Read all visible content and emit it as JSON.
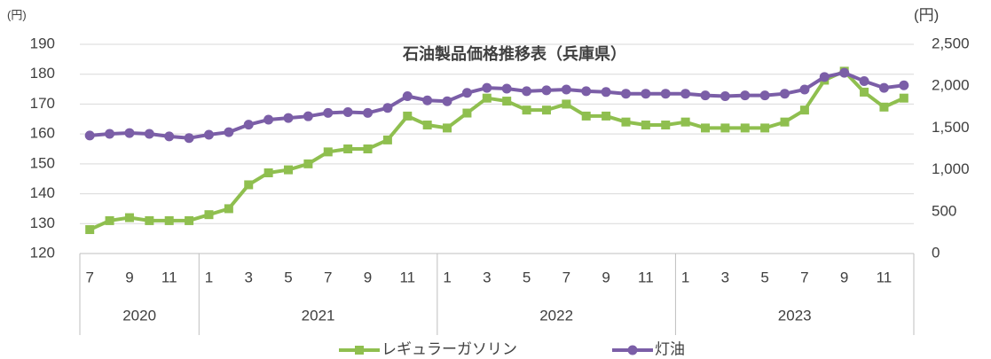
{
  "chart_data": {
    "type": "line",
    "title": "石油製品価格推移表（兵庫県）",
    "y_unit": "(円)",
    "y2_unit": "(円)",
    "categories": [
      "7",
      null,
      "9",
      null,
      "11",
      null,
      "1",
      null,
      "3",
      null,
      "5",
      null,
      "7",
      null,
      "9",
      null,
      "11",
      null,
      "1",
      null,
      "3",
      null,
      "5",
      null,
      "7",
      null,
      "9",
      null,
      "11",
      null,
      "1",
      null,
      "3",
      null,
      "5",
      null,
      "7",
      null,
      "9",
      null,
      "11",
      null
    ],
    "groups": [
      "2020",
      "2021",
      "2022",
      "2023"
    ],
    "ylim": [
      120,
      190
    ],
    "yticks": [
      120,
      130,
      140,
      150,
      160,
      170,
      180,
      190
    ],
    "y2lim": [
      0,
      2500
    ],
    "y2ticks": [
      0,
      500,
      {
        "value": 1000,
        "label": "1,000"
      },
      {
        "value": 1500,
        "label": "1,500"
      },
      {
        "value": 2000,
        "label": "2,000"
      },
      {
        "value": 2500,
        "label": "2,500"
      }
    ],
    "grid": true,
    "legend": "bottom",
    "series": [
      {
        "name": "レギュラーガソリン",
        "color": "#8fbf4f",
        "marker": "square",
        "values": [
          128,
          131,
          132,
          131,
          131,
          131,
          133,
          135,
          143,
          147,
          148,
          150,
          154,
          155,
          155,
          158,
          166,
          163,
          162,
          167,
          172,
          171,
          168,
          168,
          170,
          166,
          166,
          164,
          163,
          163,
          164,
          162,
          162,
          162,
          162,
          164,
          168,
          178,
          181,
          174,
          169,
          172
        ]
      },
      {
        "name": "灯油",
        "color": "#7b5ea7",
        "marker": "circle",
        "axis": "y2",
        "values": [
          1410,
          1430,
          1440,
          1430,
          1400,
          1380,
          1420,
          1450,
          1540,
          1600,
          1620,
          1640,
          1680,
          1690,
          1680,
          1740,
          1880,
          1830,
          1820,
          1920,
          1980,
          1970,
          1940,
          1950,
          1960,
          1940,
          1930,
          1910,
          1910,
          1910,
          1910,
          1890,
          1880,
          1890,
          1890,
          1910,
          1960,
          2110,
          2160,
          2060,
          1980,
          2010
        ]
      }
    ]
  }
}
